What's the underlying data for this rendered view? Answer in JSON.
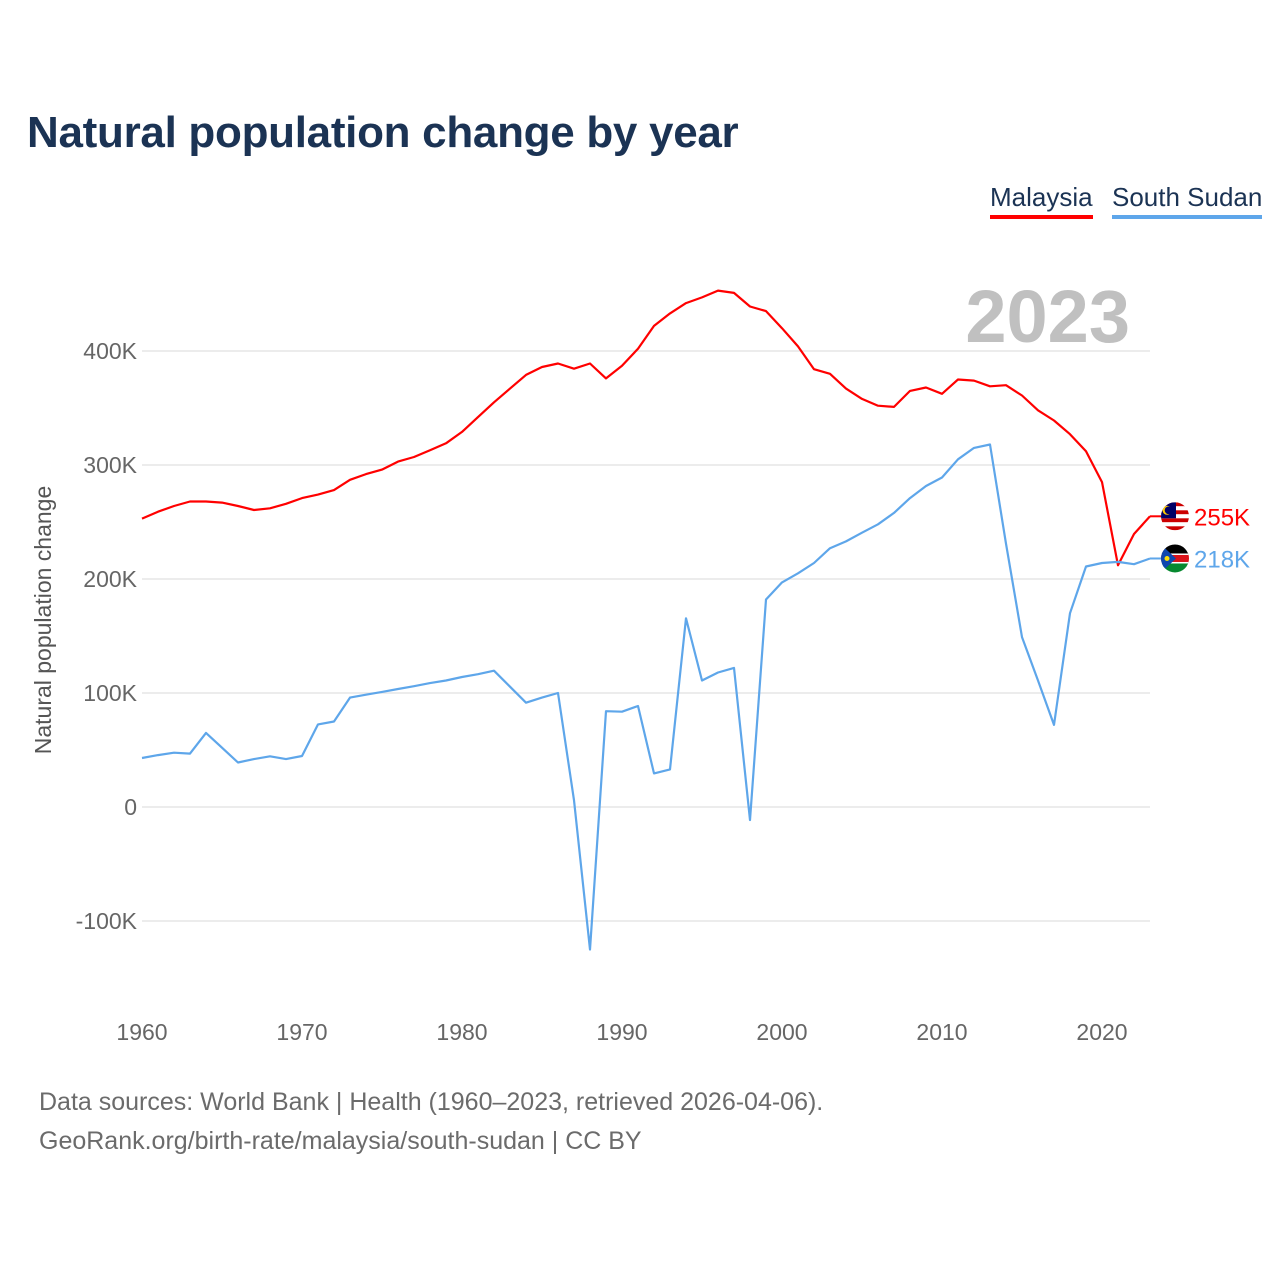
{
  "title": "Natural population change by year",
  "legend": [
    {
      "label": "Malaysia",
      "color": "#ff0000"
    },
    {
      "label": "South Sudan",
      "color": "#5ea6ea"
    }
  ],
  "footer": {
    "line1": "Data sources: World Bank | Health (1960–2023, retrieved 2026-04-06).",
    "line2": "GeoRank.org/birth-rate/malaysia/south-sudan | CC BY"
  },
  "chart_data": {
    "type": "line",
    "title": "Natural population change by year",
    "ylabel": "Natural population change",
    "xlabel": "",
    "year_overlay": "2023",
    "xlim": [
      1960,
      2023
    ],
    "ylim": [
      -150000,
      470000
    ],
    "grid": true,
    "legend_position": "top-right",
    "x_ticks": [
      1960,
      1970,
      1980,
      1990,
      2000,
      2010,
      2020
    ],
    "x_tick_labels": [
      "1960",
      "1970",
      "1980",
      "1990",
      "2000",
      "2010",
      "2020"
    ],
    "y_ticks": [
      -100000,
      0,
      100000,
      200000,
      300000,
      400000
    ],
    "y_tick_labels": [
      "-100K",
      "0",
      "100K",
      "200K",
      "300K",
      "400K"
    ],
    "x": [
      1960,
      1961,
      1962,
      1963,
      1964,
      1965,
      1966,
      1967,
      1968,
      1969,
      1970,
      1971,
      1972,
      1973,
      1974,
      1975,
      1976,
      1977,
      1978,
      1979,
      1980,
      1981,
      1982,
      1983,
      1984,
      1985,
      1986,
      1987,
      1988,
      1989,
      1990,
      1991,
      1992,
      1993,
      1994,
      1995,
      1996,
      1997,
      1998,
      1999,
      2000,
      2001,
      2002,
      2003,
      2004,
      2005,
      2006,
      2007,
      2008,
      2009,
      2010,
      2011,
      2012,
      2013,
      2014,
      2015,
      2016,
      2017,
      2018,
      2019,
      2020,
      2021,
      2022,
      2023
    ],
    "series": [
      {
        "name": "Malaysia",
        "color": "#ff0000",
        "end_label": "255K",
        "flag_icon": "malaysia-flag-icon",
        "values": [
          253000,
          259000,
          264000,
          268000,
          268000,
          267000,
          264000,
          260500,
          262000,
          266000,
          271000,
          274000,
          278000,
          287000,
          292000,
          296000,
          303000,
          307000,
          313000,
          319000,
          329000,
          342000,
          355000,
          367000,
          379000,
          386000,
          389000,
          384500,
          389000,
          376000,
          387000,
          402000,
          422000,
          433000,
          442000,
          447000,
          453000,
          451000,
          439000,
          435000,
          420000,
          404000,
          384000,
          380000,
          367000,
          358000,
          352000,
          351000,
          365000,
          368000,
          362500,
          375000,
          374000,
          369000,
          370000,
          361000,
          348000,
          339000,
          327000,
          312000,
          285000,
          212000,
          239500,
          255000
        ]
      },
      {
        "name": "South Sudan",
        "color": "#5ea6ea",
        "end_label": "218K",
        "flag_icon": "south-sudan-flag-icon",
        "values": [
          43000,
          45500,
          47600,
          46800,
          65000,
          52000,
          39000,
          42000,
          44500,
          42000,
          44700,
          72500,
          75000,
          96000,
          98500,
          101000,
          103500,
          106000,
          108700,
          111000,
          114000,
          116500,
          119600,
          105500,
          91500,
          96000,
          100000,
          6000,
          -125000,
          84000,
          83600,
          88600,
          29500,
          33000,
          165500,
          111000,
          118000,
          122000,
          -11400,
          182000,
          197000,
          205000,
          214000,
          227000,
          233000,
          240600,
          248000,
          258000,
          271000,
          281600,
          289000,
          305000,
          315000,
          318000,
          231000,
          149000,
          111000,
          72000,
          170000,
          211000,
          214000,
          215000,
          213000,
          218000
        ]
      }
    ]
  }
}
